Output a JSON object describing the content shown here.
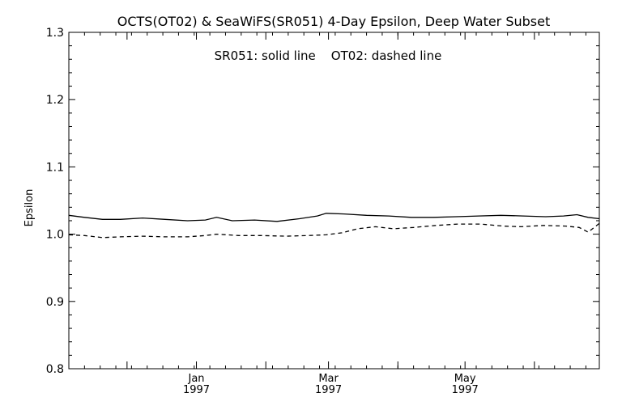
{
  "chart_data": {
    "type": "line",
    "title": "OCTS(OT02) & SeaWiFS(SR051) 4-Day Epsilon, Deep Water Subset",
    "annotation": "SR051: solid line    OT02: dashed line",
    "ylabel": "Epsilon",
    "xlabel": "",
    "ylim": [
      0.8,
      1.3
    ],
    "yticks": [
      {
        "value": 0.8,
        "label": "0.8"
      },
      {
        "value": 0.9,
        "label": "0.9"
      },
      {
        "value": 1.0,
        "label": "1.0"
      },
      {
        "value": 1.1,
        "label": "1.1"
      },
      {
        "value": 1.2,
        "label": "1.2"
      },
      {
        "value": 1.3,
        "label": "1.3"
      }
    ],
    "xlim": [
      "1996-11-05",
      "1997-06-30"
    ],
    "xticks": [
      {
        "date": "1996-12-01",
        "label": ""
      },
      {
        "date": "1997-01-01",
        "label": "Jan",
        "year": "1997"
      },
      {
        "date": "1997-02-01",
        "label": ""
      },
      {
        "date": "1997-03-01",
        "label": "Mar",
        "year": "1997"
      },
      {
        "date": "1997-04-01",
        "label": ""
      },
      {
        "date": "1997-05-01",
        "label": "May",
        "year": "1997"
      },
      {
        "date": "1997-06-01",
        "label": ""
      }
    ],
    "series": [
      {
        "name": "SR051",
        "style": "solid",
        "color": "#000000",
        "points": [
          [
            "1996-11-05",
            1.028
          ],
          [
            "1996-11-12",
            1.025
          ],
          [
            "1996-11-20",
            1.022
          ],
          [
            "1996-11-28",
            1.022
          ],
          [
            "1996-12-08",
            1.024
          ],
          [
            "1996-12-18",
            1.022
          ],
          [
            "1996-12-28",
            1.02
          ],
          [
            "1997-01-05",
            1.021
          ],
          [
            "1997-01-10",
            1.025
          ],
          [
            "1997-01-17",
            1.02
          ],
          [
            "1997-01-27",
            1.021
          ],
          [
            "1997-02-06",
            1.019
          ],
          [
            "1997-02-16",
            1.023
          ],
          [
            "1997-02-24",
            1.027
          ],
          [
            "1997-02-28",
            1.031
          ],
          [
            "1997-03-08",
            1.03
          ],
          [
            "1997-03-18",
            1.028
          ],
          [
            "1997-03-28",
            1.027
          ],
          [
            "1997-04-07",
            1.025
          ],
          [
            "1997-04-17",
            1.025
          ],
          [
            "1997-04-27",
            1.026
          ],
          [
            "1997-05-07",
            1.027
          ],
          [
            "1997-05-17",
            1.028
          ],
          [
            "1997-05-27",
            1.027
          ],
          [
            "1997-06-06",
            1.026
          ],
          [
            "1997-06-14",
            1.027
          ],
          [
            "1997-06-20",
            1.029
          ],
          [
            "1997-06-25",
            1.025
          ],
          [
            "1997-06-30",
            1.023
          ]
        ]
      },
      {
        "name": "OT02",
        "style": "dashed",
        "color": "#000000",
        "points": [
          [
            "1996-11-05",
            0.999
          ],
          [
            "1996-11-12",
            0.998
          ],
          [
            "1996-11-20",
            0.995
          ],
          [
            "1996-11-28",
            0.996
          ],
          [
            "1996-12-08",
            0.997
          ],
          [
            "1996-12-18",
            0.996
          ],
          [
            "1996-12-28",
            0.996
          ],
          [
            "1997-01-05",
            0.998
          ],
          [
            "1997-01-10",
            1.0
          ],
          [
            "1997-01-20",
            0.998
          ],
          [
            "1997-01-30",
            0.998
          ],
          [
            "1997-02-10",
            0.997
          ],
          [
            "1997-02-20",
            0.998
          ],
          [
            "1997-02-28",
            0.999
          ],
          [
            "1997-03-07",
            1.002
          ],
          [
            "1997-03-14",
            1.008
          ],
          [
            "1997-03-22",
            1.011
          ],
          [
            "1997-03-30",
            1.008
          ],
          [
            "1997-04-08",
            1.01
          ],
          [
            "1997-04-18",
            1.013
          ],
          [
            "1997-04-28",
            1.015
          ],
          [
            "1997-05-08",
            1.015
          ],
          [
            "1997-05-18",
            1.012
          ],
          [
            "1997-05-26",
            1.011
          ],
          [
            "1997-06-05",
            1.013
          ],
          [
            "1997-06-15",
            1.012
          ],
          [
            "1997-06-21",
            1.01
          ],
          [
            "1997-06-25",
            1.003
          ],
          [
            "1997-06-30",
            1.016
          ]
        ]
      }
    ],
    "grid": false,
    "legend": "top-center text annotation"
  }
}
